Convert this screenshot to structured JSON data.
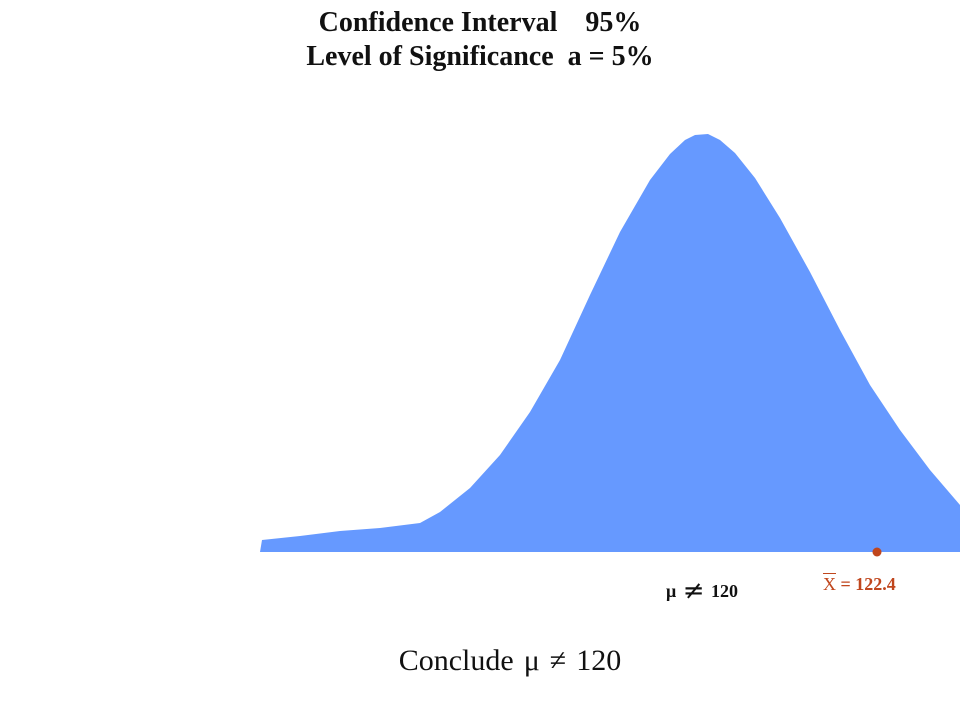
{
  "slide": {
    "title_line1": "Confidence Interval    95%",
    "title_line2": "Level of Significance  a = 5%"
  },
  "labels": {
    "mu": "μ",
    "mu_neq": "≠",
    "mu_value": "120",
    "xbar_symbol": "X",
    "xbar_value": "= 122.4",
    "conclusion_word": "Conclude",
    "conclusion_mu": "μ",
    "conclusion_neq": "≠",
    "conclusion_value": "120"
  },
  "colors": {
    "curve_fill": "#6699ff",
    "sample_mean": "#c0461d",
    "text": "#111111"
  }
}
